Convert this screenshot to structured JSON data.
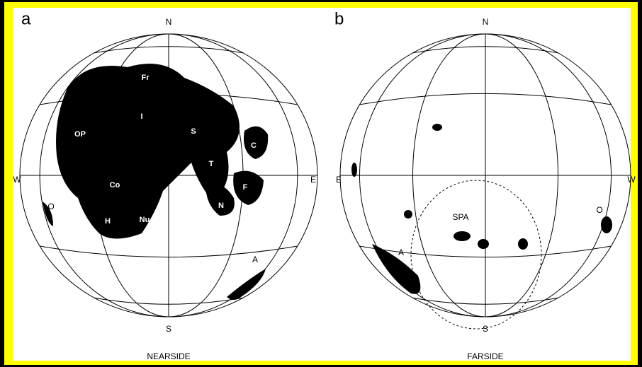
{
  "panels": [
    {
      "letter": "a",
      "caption": "NEARSIDE",
      "compass": {
        "north": "N",
        "south": "S",
        "west": "W",
        "east": "E"
      },
      "regions": [
        "Fr",
        "I",
        "OP",
        "S",
        "C",
        "T",
        "Co",
        "F",
        "N",
        "H",
        "Nu",
        "O",
        "A"
      ]
    },
    {
      "letter": "b",
      "caption": "FARSIDE",
      "compass": {
        "north": "N",
        "south": "S",
        "west": "E",
        "east": "W"
      },
      "regions": [
        "SPA",
        "O",
        "A"
      ]
    }
  ]
}
